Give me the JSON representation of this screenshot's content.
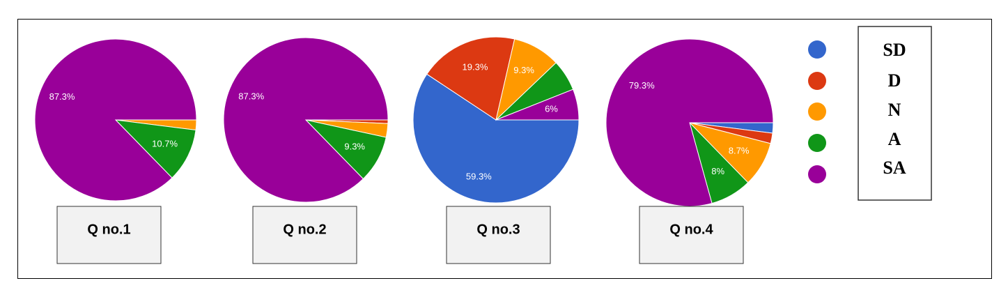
{
  "chart_data": [
    {
      "type": "pie",
      "title": "Q no.1",
      "values": [
        0,
        0,
        2,
        10.7,
        87.3
      ],
      "value_labels": [
        null,
        null,
        null,
        "10.7%",
        "87.3%"
      ]
    },
    {
      "type": "pie",
      "title": "Q no.2",
      "values": [
        0,
        0.7,
        2.7,
        9.3,
        87.3
      ],
      "value_labels": [
        null,
        null,
        null,
        "9.3%",
        "87.3%"
      ]
    },
    {
      "type": "pie",
      "title": "Q no.3",
      "values": [
        59.3,
        19.3,
        9.3,
        6.1,
        6
      ],
      "value_labels": [
        "59.3%",
        "19.3%",
        "9.3%",
        null,
        "6%"
      ]
    },
    {
      "type": "pie",
      "title": "Q no.4",
      "values": [
        2,
        2,
        8.7,
        8,
        79.3
      ],
      "value_labels": [
        null,
        null,
        "8.7%",
        "8%",
        "79.3%"
      ]
    }
  ],
  "legend": {
    "labels": [
      "SD",
      "D",
      "N",
      "A",
      "SA"
    ],
    "colors": [
      "#3366cc",
      "#dc3912",
      "#ff9900",
      "#109618",
      "#990099"
    ]
  }
}
